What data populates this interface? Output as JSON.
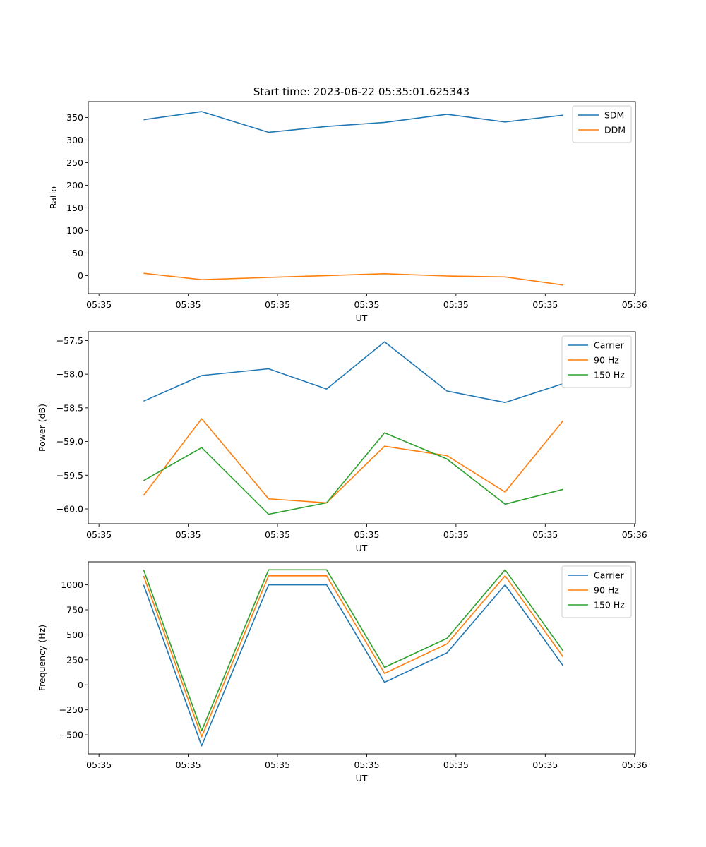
{
  "title": "Start time: 2023-06-22 05:35:01.625343",
  "chart_data": [
    {
      "type": "line",
      "xlabel": "UT",
      "ylabel": "Ratio",
      "x_ticks": [
        0,
        1,
        2,
        3,
        4,
        5,
        6
      ],
      "x_tick_labels": [
        "05:35",
        "05:35",
        "05:35",
        "05:35",
        "05:35",
        "05:35",
        "05:36"
      ],
      "xlim": [
        -0.12,
        6.01
      ],
      "x": [
        0.5,
        1.15,
        1.9,
        2.55,
        3.2,
        3.9,
        4.55,
        5.2
      ],
      "ylim": [
        -40,
        385
      ],
      "y_ticks": [
        0,
        50,
        100,
        150,
        200,
        250,
        300,
        350
      ],
      "legend": "top-right",
      "series": [
        {
          "name": "SDM",
          "color": "#1f77b4",
          "values": [
            345,
            363,
            317,
            330,
            339,
            357,
            340,
            355
          ]
        },
        {
          "name": "DDM",
          "color": "#ff7f0e",
          "values": [
            5,
            -9,
            -4,
            0,
            4,
            -1,
            -3,
            -21
          ]
        }
      ]
    },
    {
      "type": "line",
      "xlabel": "UT",
      "ylabel": "Power (dB)",
      "x_ticks": [
        0,
        1,
        2,
        3,
        4,
        5,
        6
      ],
      "x_tick_labels": [
        "05:35",
        "05:35",
        "05:35",
        "05:35",
        "05:35",
        "05:35",
        "05:36"
      ],
      "xlim": [
        -0.12,
        6.01
      ],
      "x": [
        0.5,
        1.15,
        1.9,
        2.55,
        3.2,
        3.9,
        4.55,
        5.2
      ],
      "ylim": [
        -60.22,
        -57.37
      ],
      "y_ticks": [
        -60.0,
        -59.5,
        -59.0,
        -58.5,
        -58.0,
        -57.5
      ],
      "y_tick_labels": [
        "−60.0",
        "−59.5",
        "−59.0",
        "−58.5",
        "−58.0",
        "−57.5"
      ],
      "legend": "top-right",
      "series": [
        {
          "name": "Carrier",
          "color": "#1f77b4",
          "values": [
            -58.4,
            -58.02,
            -57.92,
            -58.22,
            -57.52,
            -58.25,
            -58.42,
            -58.14
          ]
        },
        {
          "name": "90 Hz",
          "color": "#ff7f0e",
          "values": [
            -59.8,
            -58.66,
            -59.85,
            -59.91,
            -59.07,
            -59.21,
            -59.75,
            -58.69
          ]
        },
        {
          "name": "150 Hz",
          "color": "#2ca02c",
          "values": [
            -59.58,
            -59.09,
            -60.08,
            -59.91,
            -58.87,
            -59.26,
            -59.93,
            -59.71
          ]
        }
      ]
    },
    {
      "type": "line",
      "xlabel": "UT",
      "ylabel": "Frequency (Hz)",
      "x_ticks": [
        0,
        1,
        2,
        3,
        4,
        5,
        6
      ],
      "x_tick_labels": [
        "05:35",
        "05:35",
        "05:35",
        "05:35",
        "05:35",
        "05:35",
        "05:36"
      ],
      "xlim": [
        -0.12,
        6.01
      ],
      "x": [
        0.5,
        1.15,
        1.9,
        2.55,
        3.2,
        3.9,
        4.55,
        5.2
      ],
      "ylim": [
        -690,
        1230
      ],
      "y_ticks": [
        -500,
        -250,
        0,
        250,
        500,
        750,
        1000
      ],
      "y_tick_labels": [
        "−500",
        "−250",
        "0",
        "250",
        "500",
        "750",
        "1000"
      ],
      "legend": "top-right",
      "series": [
        {
          "name": "Carrier",
          "color": "#1f77b4",
          "values": [
            1000,
            -610,
            1000,
            1000,
            25,
            320,
            1000,
            190
          ]
        },
        {
          "name": "90 Hz",
          "color": "#ff7f0e",
          "values": [
            1090,
            -520,
            1090,
            1090,
            115,
            410,
            1090,
            280
          ]
        },
        {
          "name": "150 Hz",
          "color": "#2ca02c",
          "values": [
            1150,
            -460,
            1150,
            1150,
            175,
            465,
            1150,
            340
          ]
        }
      ]
    }
  ]
}
